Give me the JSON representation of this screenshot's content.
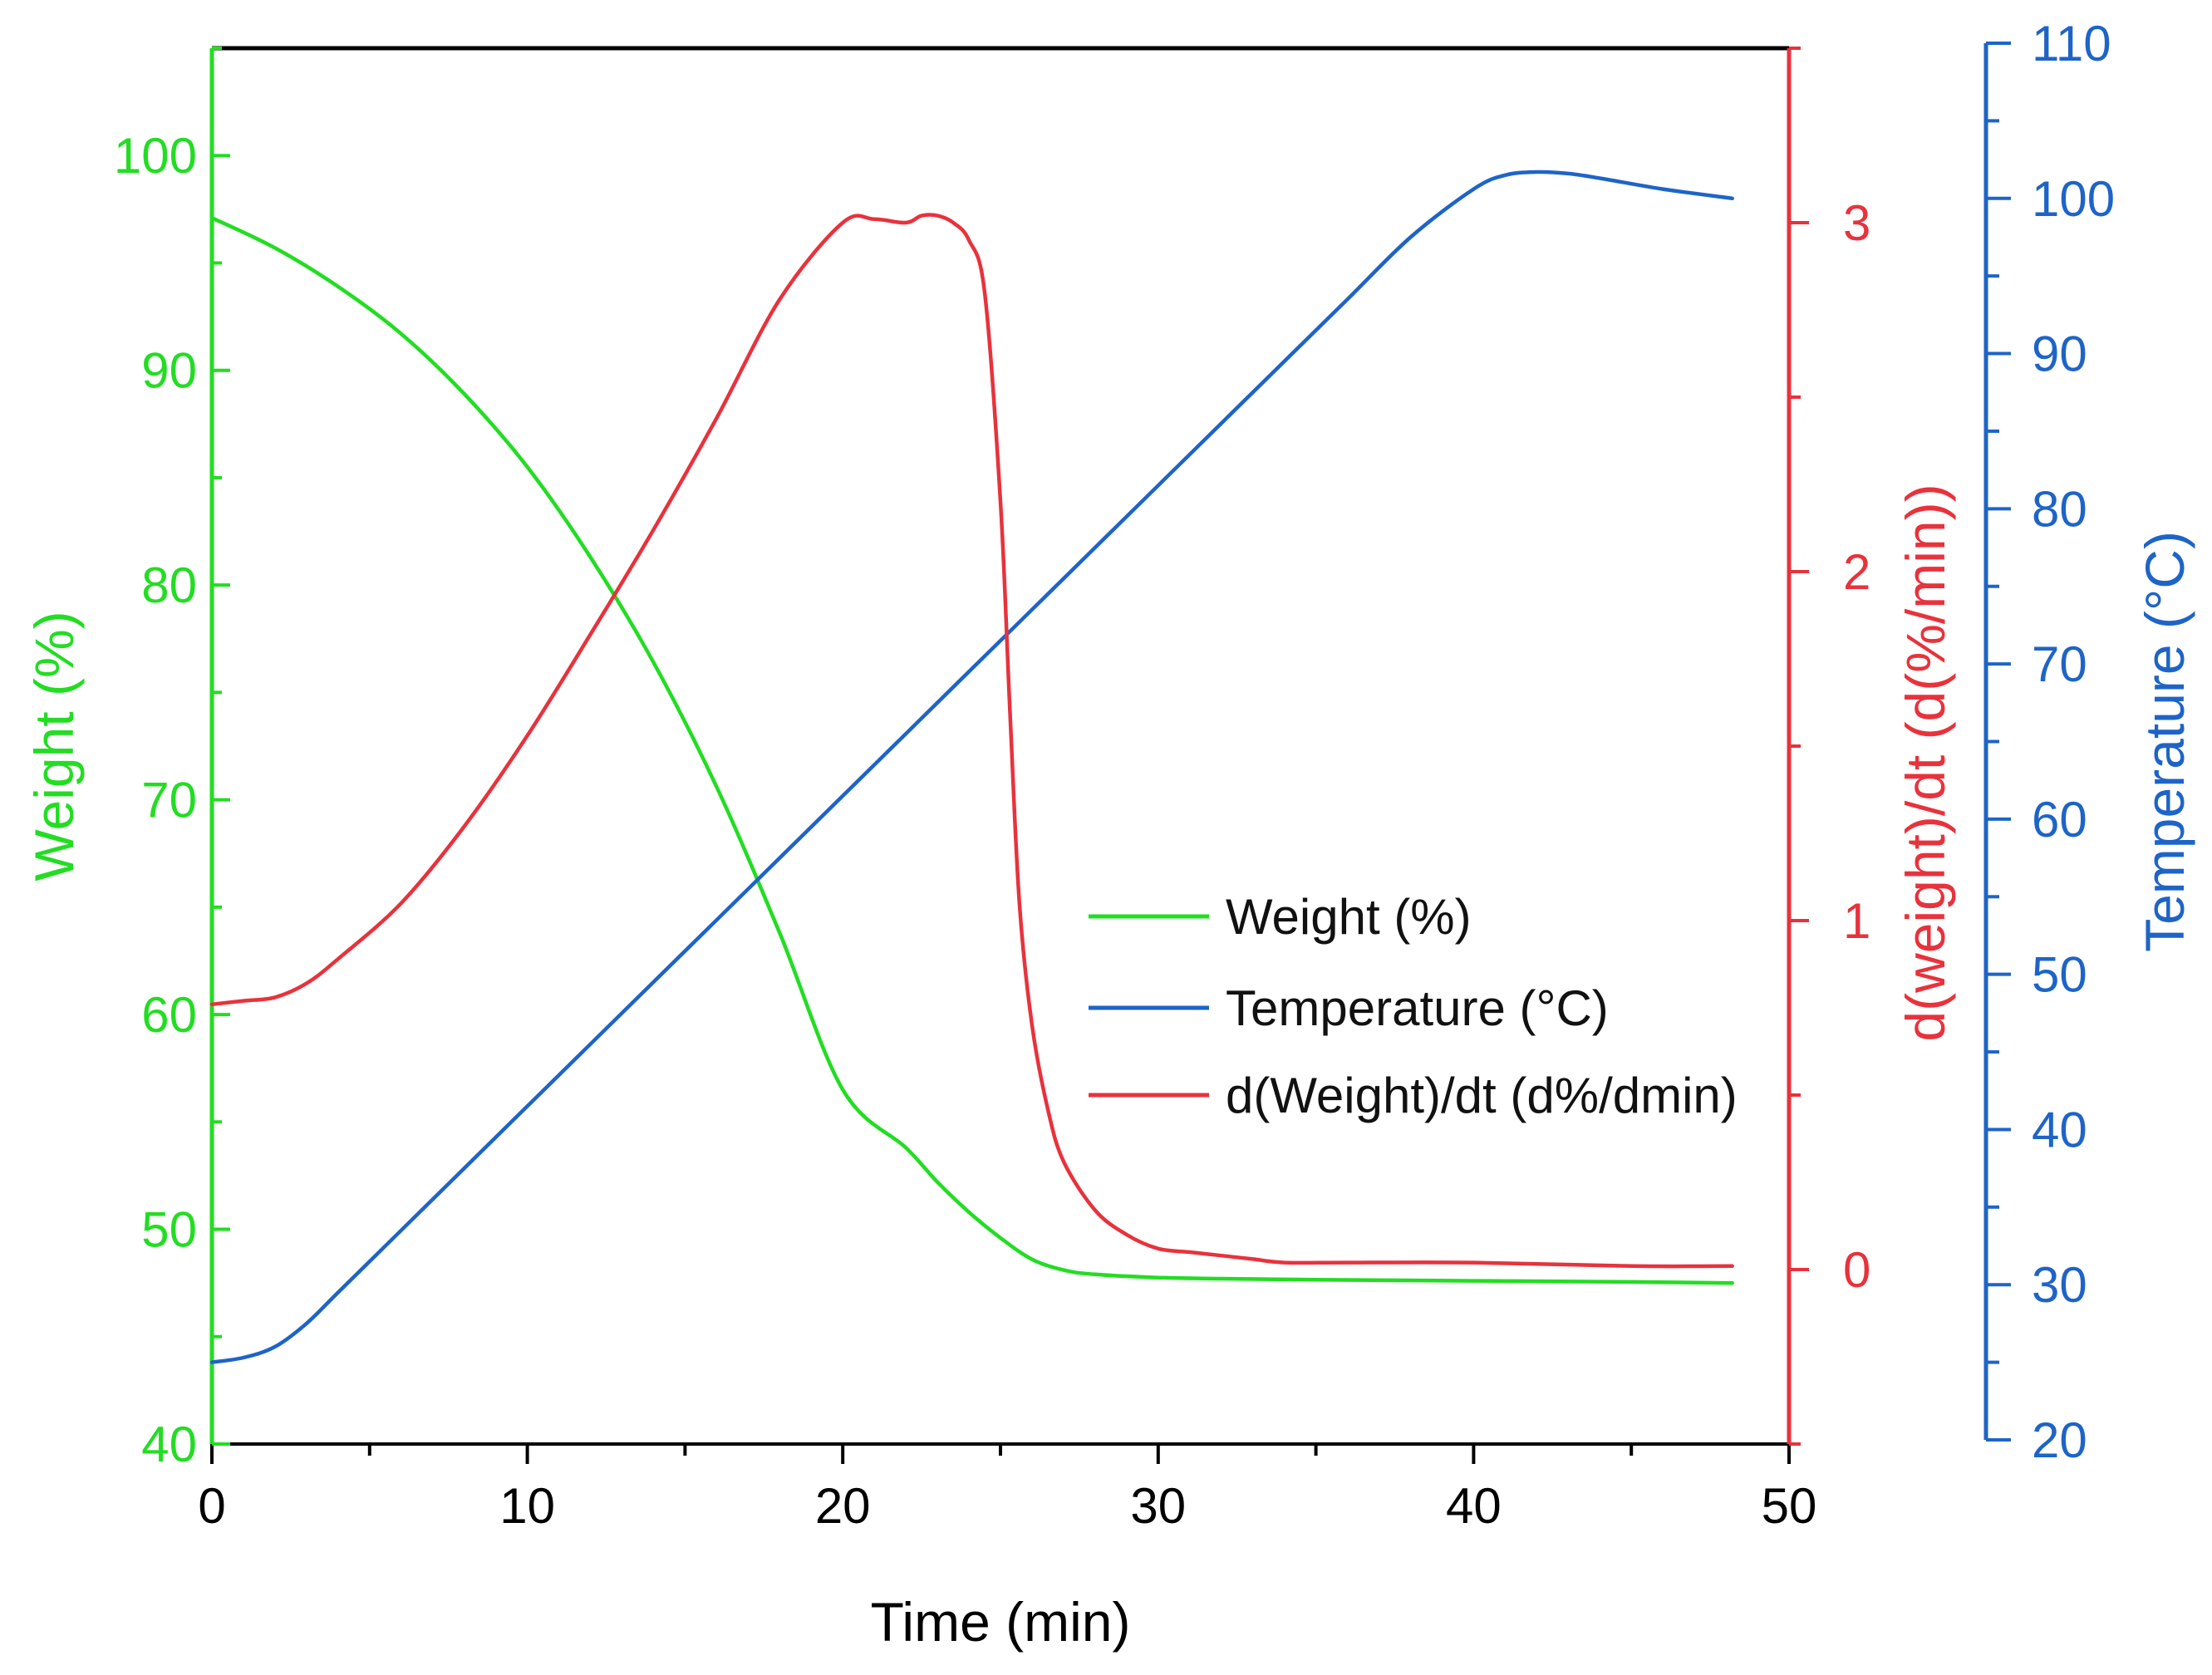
{
  "chart_data": {
    "type": "line",
    "colors": {
      "weight": "#22dd22",
      "derivative": "#e8323c",
      "temperature": "#1e64c8",
      "frame": "#000000"
    },
    "x_axis": {
      "label": "Time (min)",
      "range": [
        0,
        50
      ],
      "ticks": [
        0,
        10,
        20,
        30,
        40,
        50
      ],
      "minor_step": 5
    },
    "y_axes": [
      {
        "id": "weight",
        "label": "Weight (%)",
        "side": "left",
        "range": [
          40,
          105
        ],
        "ticks": [
          40,
          50,
          60,
          70,
          80,
          90,
          100
        ],
        "minor_step": 5
      },
      {
        "id": "derivative",
        "label": "d(weight)/dt (d(%/min))",
        "side": "right",
        "range": [
          -0.5,
          3.5
        ],
        "ticks": [
          0,
          1,
          2,
          3
        ],
        "minor_step": 0.5
      },
      {
        "id": "temperature",
        "label": "Temperature (°C)",
        "side": "right-outer",
        "range": [
          20,
          110
        ],
        "ticks": [
          20,
          30,
          40,
          50,
          60,
          70,
          80,
          90,
          100,
          110
        ],
        "minor_step": 5
      }
    ],
    "legend": {
      "position": "center-right",
      "entries": [
        "Weight (%)",
        "Temperature (°C)",
        "d(Weight)/dt (d%/dmin)"
      ]
    },
    "series": [
      {
        "name": "Weight (%)",
        "axis": "weight",
        "x": [
          0,
          2,
          4,
          6,
          8,
          10,
          12,
          14,
          16,
          18,
          20,
          22,
          23,
          24,
          25,
          26,
          27,
          28,
          30,
          32,
          35,
          40,
          45,
          48.2
        ],
        "y": [
          97.1,
          95.7,
          93.9,
          91.7,
          88.9,
          85.5,
          81.3,
          76.4,
          70.6,
          63.8,
          56.5,
          53.8,
          52.2,
          50.8,
          49.6,
          48.6,
          48.1,
          47.9,
          47.75,
          47.7,
          47.65,
          47.6,
          47.55,
          47.5
        ]
      },
      {
        "name": "Temperature (°C)",
        "axis": "temperature",
        "x": [
          0,
          1,
          2,
          3,
          4,
          6,
          8,
          10,
          12,
          14,
          16,
          18,
          20,
          22,
          24,
          26,
          28,
          30,
          32,
          34,
          36,
          38,
          40,
          41,
          42,
          43,
          44,
          46,
          48.2
        ],
        "y": [
          25,
          25.3,
          26,
          27.5,
          29.5,
          33.5,
          37.5,
          41.5,
          45.5,
          49.5,
          53.5,
          57.5,
          61.5,
          65.5,
          69.5,
          73.5,
          77.5,
          81.5,
          85.5,
          89.5,
          93.5,
          97.5,
          100.6,
          101.5,
          101.7,
          101.6,
          101.3,
          100.6,
          100
        ]
      },
      {
        "name": "d(Weight)/dt (d%/dmin)",
        "axis": "derivative",
        "x": [
          0,
          1,
          2,
          3,
          4,
          6,
          8,
          10,
          12,
          14,
          16,
          18,
          20,
          21,
          22,
          22.5,
          23,
          23.5,
          24,
          24.5,
          25,
          25.3,
          25.6,
          26,
          26.5,
          27,
          28,
          29,
          30,
          31,
          32,
          33,
          34,
          36,
          40,
          45,
          48.2
        ],
        "y": [
          0.76,
          0.77,
          0.78,
          0.82,
          0.89,
          1.05,
          1.27,
          1.53,
          1.82,
          2.12,
          2.44,
          2.78,
          3.0,
          3.01,
          3.0,
          3.02,
          3.02,
          3.0,
          2.95,
          2.8,
          2.2,
          1.6,
          1.05,
          0.7,
          0.46,
          0.31,
          0.17,
          0.1,
          0.06,
          0.05,
          0.04,
          0.03,
          0.02,
          0.02,
          0.02,
          0.01,
          0.01
        ]
      }
    ]
  }
}
